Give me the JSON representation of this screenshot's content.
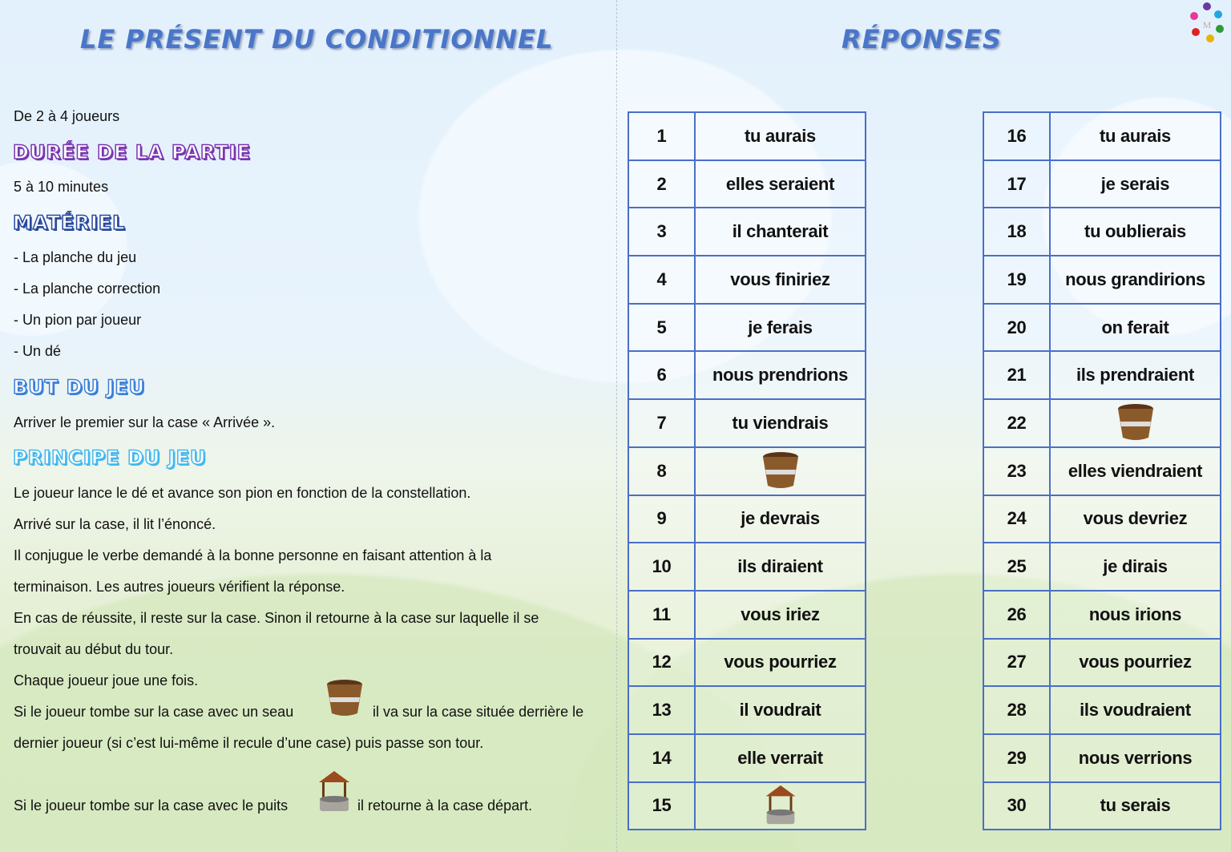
{
  "left": {
    "title": "LE PRÉSENT DU CONDITIONNEL",
    "players": "De 2 à 4 joueurs",
    "duration_heading": "DURÉE DE LA PARTIE",
    "duration": "5 à 10 minutes",
    "material_heading": "MATÉRIEL",
    "material": [
      "- La planche du jeu",
      "- La planche correction",
      "- Un pion par joueur",
      "- Un dé"
    ],
    "goal_heading": "BUT DU JEU",
    "goal": "Arriver le premier sur la case « Arrivée ».",
    "rules_heading": "PRINCIPE DU JEU",
    "rules": [
      "Le joueur lance le dé et avance son pion en fonction de la constellation.",
      "Arrivé sur la case, il lit l’énoncé.",
      "Il conjugue le verbe demandé à la bonne personne en faisant attention à la",
      "terminaison. Les autres joueurs vérifient la réponse.",
      "En cas de réussite, il reste sur la case. Sinon il retourne à la case sur laquelle il se",
      "trouvait au début du tour.",
      "Chaque joueur joue une fois."
    ],
    "bucket_rule_a": "Si le joueur tombe sur la case avec un seau",
    "bucket_rule_b": "il va sur la case située derrière le",
    "bucket_rule_c": "dernier joueur (si c’est lui-même il recule d’une case) puis passe son tour.",
    "well_rule_a": "Si le joueur tombe sur la case avec le puits",
    "well_rule_b": "il retourne à la case départ."
  },
  "right": {
    "title": "RÉPONSES",
    "logo_text": "M",
    "table1": [
      [
        "1",
        "tu aurais"
      ],
      [
        "2",
        "elles seraient"
      ],
      [
        "3",
        "il chanterait"
      ],
      [
        "4",
        "vous finiriez"
      ],
      [
        "5",
        "je ferais"
      ],
      [
        "6",
        "nous prendrions"
      ],
      [
        "7",
        "tu viendrais"
      ],
      [
        "8",
        "bucket-icon"
      ],
      [
        "9",
        "je devrais"
      ],
      [
        "10",
        "ils diraient"
      ],
      [
        "11",
        "vous iriez"
      ],
      [
        "12",
        "vous pourriez"
      ],
      [
        "13",
        "il voudrait"
      ],
      [
        "14",
        "elle verrait"
      ],
      [
        "15",
        "well-icon"
      ]
    ],
    "table2": [
      [
        "16",
        "tu aurais"
      ],
      [
        "17",
        "je serais"
      ],
      [
        "18",
        "tu oublierais"
      ],
      [
        "19",
        "nous grandirions"
      ],
      [
        "20",
        "on ferait"
      ],
      [
        "21",
        "ils prendraient"
      ],
      [
        "22",
        "bucket-icon"
      ],
      [
        "23",
        "elles viendraient"
      ],
      [
        "24",
        "vous devriez"
      ],
      [
        "25",
        "je dirais"
      ],
      [
        "26",
        "nous irions"
      ],
      [
        "27",
        "vous pourriez"
      ],
      [
        "28",
        "ils voudraient"
      ],
      [
        "29",
        "nous verrions"
      ],
      [
        "30",
        "tu serais"
      ]
    ]
  },
  "colors": {
    "title": "#4a76c9",
    "duration": "#7a35b0",
    "material": "#2a4a9c",
    "goal": "#3a7fd8",
    "rules": "#42b8ee",
    "table_border": "#4a6fc7"
  }
}
